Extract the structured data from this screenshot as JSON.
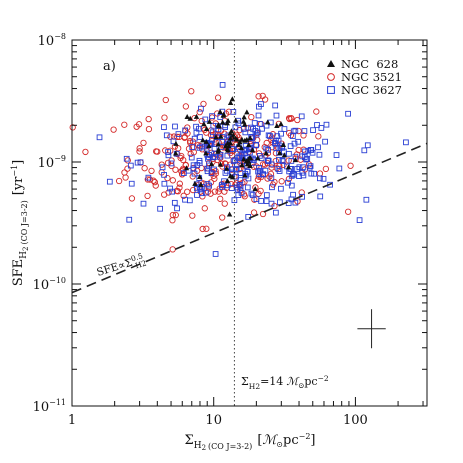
{
  "chart_data": {
    "type": "scatter",
    "panel_label": "a)",
    "xlabel": "Σ_H2 (CO J=3−2) [M☉ pc⁻²]",
    "ylabel": "SFE_H2 (CO J=3−2) [yr⁻¹]",
    "xlabel_parts": {
      "sym": "Σ",
      "sub1": "H",
      "sub2": "2",
      "subtext": "(CO J=3-2)",
      "units": "[",
      "unit_m": "ℳ",
      "unit_sun": "⊙",
      "unit_pc": "pc",
      "unit_exp": "−2",
      "close": "]"
    },
    "ylabel_parts": {
      "sym": "SFE",
      "sub1": "H",
      "sub2": "2",
      "subtext": "(CO J=3-2)",
      "units": "[yr",
      "unit_exp": "−1",
      "close": "]"
    },
    "xscale": "log",
    "yscale": "log",
    "xlim": [
      1,
      320
    ],
    "ylim": [
      1e-11,
      1e-08
    ],
    "x_ticks": [
      {
        "value": 1,
        "label": "1"
      },
      {
        "value": 10,
        "label": "10"
      },
      {
        "value": 100,
        "label": "100"
      }
    ],
    "y_ticks": [
      {
        "value": 1e-11,
        "base": "10",
        "exp": "−11"
      },
      {
        "value": 1e-10,
        "base": "10",
        "exp": "−10"
      },
      {
        "value": 1e-09,
        "base": "10",
        "exp": "−9"
      },
      {
        "value": 1e-08,
        "base": "10",
        "exp": "−8"
      }
    ],
    "legend_position": "top-right",
    "series": [
      {
        "name": "NGC  628",
        "marker": "triangle-filled",
        "color": "#111111",
        "count": 85,
        "center_logx": 1.15,
        "center_logy": -8.86,
        "spread_logx": 0.2,
        "spread_logy": 0.2
      },
      {
        "name": "NGC 3521",
        "marker": "circle-open",
        "color": "#d42a2a",
        "count": 290,
        "center_logx": 1.05,
        "center_logy": -8.97,
        "spread_logx": 0.33,
        "spread_logy": 0.22
      },
      {
        "name": "NGC 3627",
        "marker": "square-open",
        "color": "#2a3fd4",
        "count": 300,
        "center_logx": 1.22,
        "center_logy": -8.99,
        "spread_logx": 0.36,
        "spread_logy": 0.19
      }
    ],
    "fit_line": {
      "label_main": "SFE∝Σ",
      "label_exp": "0.5",
      "label_sub": "H2",
      "x": [
        1,
        320
      ],
      "y": [
        8.5e-11,
        1.42e-09
      ],
      "style": "dashed",
      "color": "#222222"
    },
    "vline": {
      "x": 14,
      "style": "dotted",
      "label_sym": "Σ",
      "label_sub": "H2",
      "label_value": "=14",
      "label_unit_m": "ℳ",
      "label_unit_sun": "⊙",
      "label_unit_rest": "pc",
      "label_unit_exp": "−2"
    },
    "error_bar": {
      "x": 130,
      "y": 4.3e-11,
      "xerr_dex": 0.1,
      "yerr_dex": 0.16
    }
  },
  "colors": {
    "axis": "#111111",
    "ngc628": "#111111",
    "ngc3521": "#d42a2a",
    "ngc3627": "#2a3fd4"
  }
}
